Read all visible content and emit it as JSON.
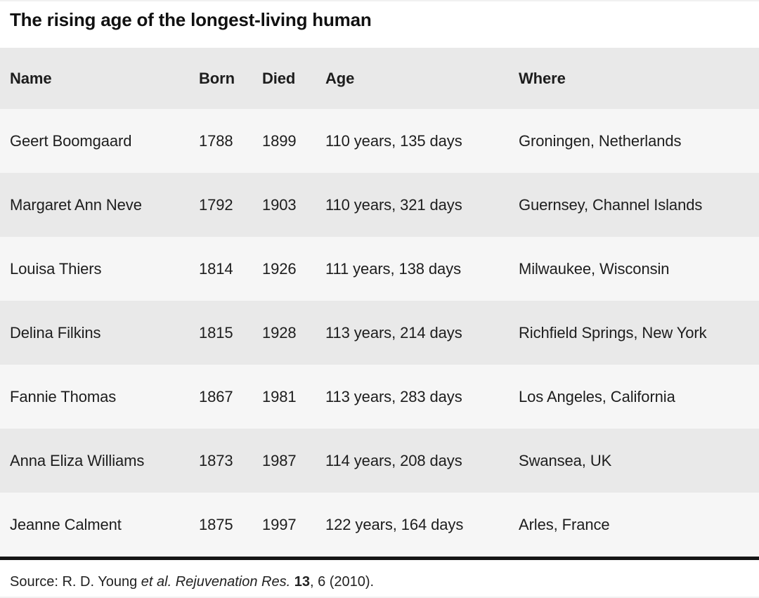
{
  "page": {
    "title": "The rising age of the longest-living human"
  },
  "chart_data": {
    "type": "table",
    "title": "The rising age of the longest-living human",
    "columns": [
      "Name",
      "Born",
      "Died",
      "Age",
      "Where"
    ],
    "rows": [
      {
        "name": "Geert Boomgaard",
        "born": "1788",
        "died": "1899",
        "age": "110 years, 135 days",
        "where": "Groningen, Netherlands"
      },
      {
        "name": "Margaret Ann Neve",
        "born": "1792",
        "died": "1903",
        "age": "110 years, 321 days",
        "where": "Guernsey, Channel Islands"
      },
      {
        "name": "Louisa Thiers",
        "born": "1814",
        "died": "1926",
        "age": "111 years, 138 days",
        "where": "Milwaukee, Wisconsin"
      },
      {
        "name": "Delina Filkins",
        "born": "1815",
        "died": "1928",
        "age": "113 years, 214 days",
        "where": "Richfield Springs, New York"
      },
      {
        "name": "Fannie Thomas",
        "born": "1867",
        "died": "1981",
        "age": "113 years, 283 days",
        "where": "Los Angeles, California"
      },
      {
        "name": "Anna Eliza Williams",
        "born": "1873",
        "died": "1987",
        "age": "114 years, 208 days",
        "where": "Swansea, UK"
      },
      {
        "name": "Jeanne Calment",
        "born": "1875",
        "died": "1997",
        "age": "122 years, 164 days",
        "where": "Arles, France"
      }
    ],
    "source_text": "Source: R. D. Young et al. Rejuvenation Res. 13, 6 (2010)."
  },
  "source": {
    "prefix": "Source: R. D. Young ",
    "et_al": "et al. ",
    "journal": "Rejuvenation Res. ",
    "volume": "13",
    "suffix": ", 6 (2010)."
  },
  "colors": {
    "header_row_bg": "#e9e9e9",
    "row_light_bg": "#f6f6f6",
    "row_dark_bg": "#e9e9e9",
    "rule": "#161616",
    "text": "#1d1d1d",
    "title_text": "#111111"
  }
}
